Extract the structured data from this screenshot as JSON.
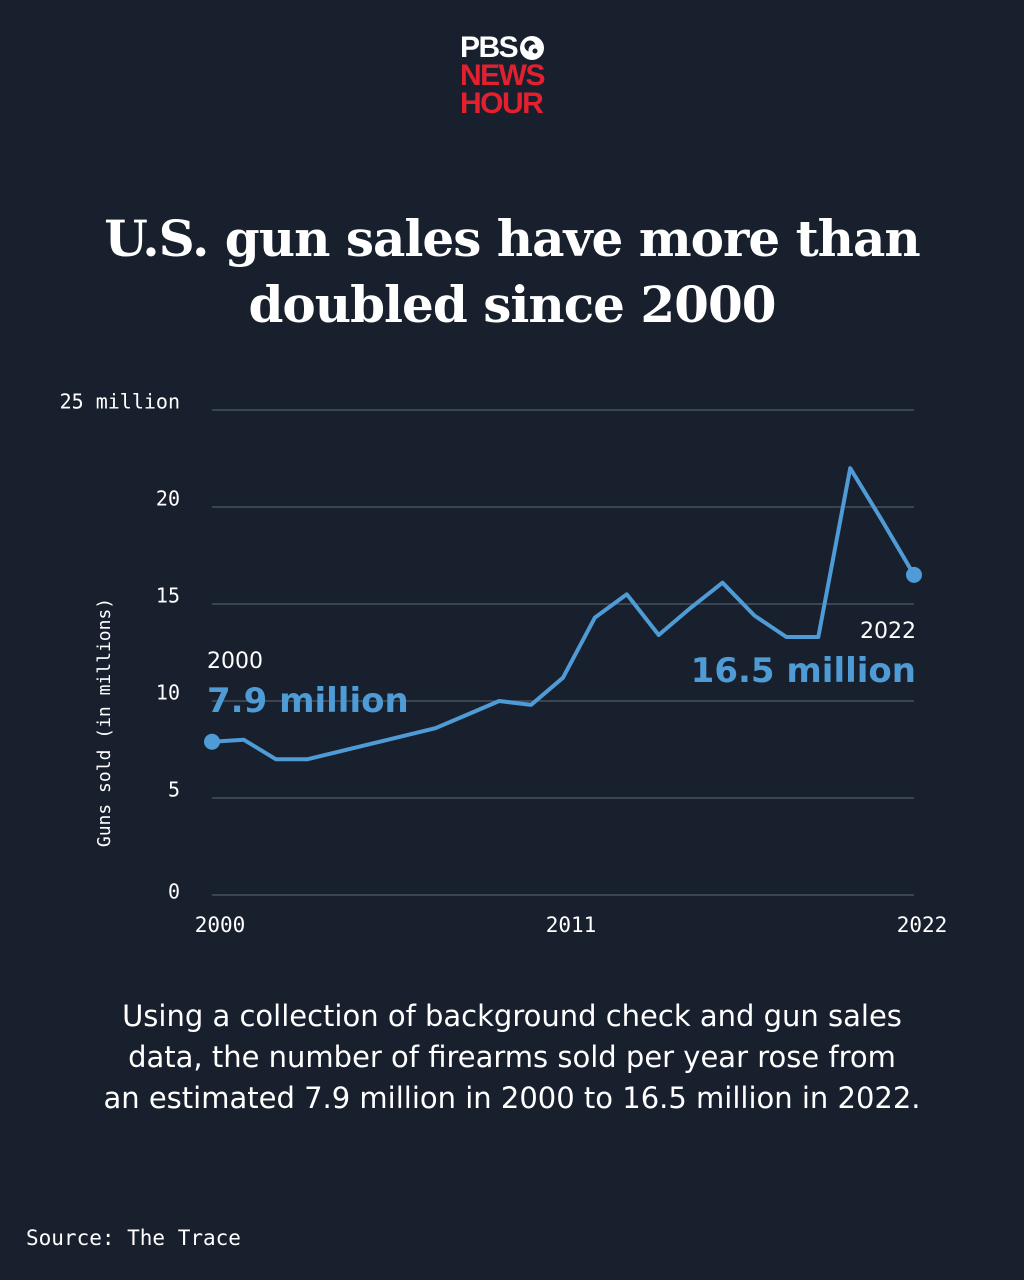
{
  "logo": {
    "pbs": "PBS",
    "news": "NEWS",
    "hour": "HOUR"
  },
  "title_line1": "U.S. gun sales have more than",
  "title_line2": "doubled since 2000",
  "chart_data": {
    "type": "line",
    "title": "U.S. gun sales have more than doubled since 2000",
    "ylabel": "Guns sold (in millions)",
    "xlabel": "",
    "ylim": [
      0,
      25
    ],
    "xlim": [
      2000,
      2022
    ],
    "y_ticks": [
      {
        "value": 0,
        "label": "0"
      },
      {
        "value": 5,
        "label": "5"
      },
      {
        "value": 10,
        "label": "10"
      },
      {
        "value": 15,
        "label": "15"
      },
      {
        "value": 20,
        "label": "20"
      },
      {
        "value": 25,
        "label": "25 million"
      }
    ],
    "x_ticks": [
      {
        "value": 2000,
        "label": "2000"
      },
      {
        "value": 2011,
        "label": "2011"
      },
      {
        "value": 2022,
        "label": "2022"
      }
    ],
    "grid": "horizontal",
    "line_color": "#4e9bd6",
    "series": [
      {
        "x": [
          2000,
          2001,
          2002,
          2003,
          2004,
          2005,
          2006,
          2007,
          2008,
          2009,
          2010,
          2011,
          2012,
          2013,
          2014,
          2015,
          2016,
          2017,
          2018,
          2019,
          2020,
          2021,
          2022
        ],
        "values": [
          7.9,
          8.0,
          7.0,
          7.0,
          7.4,
          7.8,
          8.2,
          8.6,
          9.3,
          10.0,
          9.8,
          11.2,
          14.3,
          15.5,
          13.4,
          14.8,
          16.1,
          14.4,
          13.3,
          13.3,
          22.0,
          19.3,
          16.5
        ]
      }
    ],
    "annotations": [
      {
        "year_label": "2000",
        "value_label": "7.9 million",
        "x": 2000,
        "y": 7.9
      },
      {
        "year_label": "2022",
        "value_label": "16.5 million",
        "x": 2022,
        "y": 16.5
      }
    ]
  },
  "caption": {
    "line1": "Using a collection of background check and gun sales",
    "line2": "data, the number of firearms sold per year rose from",
    "line3": "an estimated 7.9 million in 2000 to 16.5 million in 2022."
  },
  "source": "Source: The Trace"
}
